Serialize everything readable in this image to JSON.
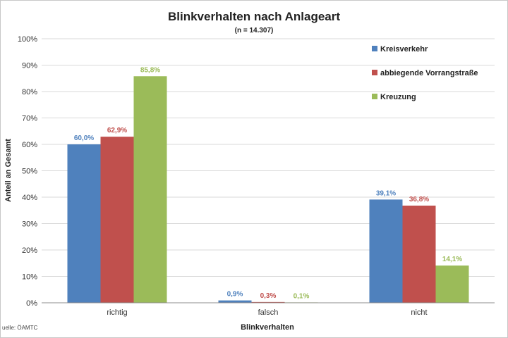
{
  "chart_data": {
    "type": "bar",
    "title": "Blinkverhalten nach Anlageart",
    "subtitle": "(n = 14.307)",
    "xlabel": "Blinkverhalten",
    "ylabel": "Anteil an Gesamt",
    "categories": [
      "richtig",
      "falsch",
      "nicht"
    ],
    "ylim": [
      0,
      100
    ],
    "yticks": [
      0,
      10,
      20,
      30,
      40,
      50,
      60,
      70,
      80,
      90,
      100
    ],
    "ytick_labels": [
      "0%",
      "10%",
      "20%",
      "30%",
      "40%",
      "50%",
      "60%",
      "70%",
      "80%",
      "90%",
      "100%"
    ],
    "grid": true,
    "legend_position": "top-right",
    "series": [
      {
        "name": "Kreisverkehr",
        "color": "#4f81bd",
        "values": [
          60.0,
          0.9,
          39.1
        ],
        "labels": [
          "60,0%",
          "0,9%",
          "39,1%"
        ]
      },
      {
        "name": "abbiegende Vorrangstraße",
        "color": "#c0504d",
        "values": [
          62.9,
          0.3,
          36.8
        ],
        "labels": [
          "62,9%",
          "0,3%",
          "36,8%"
        ]
      },
      {
        "name": "Kreuzung",
        "color": "#9bbb59",
        "values": [
          85.8,
          0.1,
          14.1
        ],
        "labels": [
          "85,8%",
          "0,1%",
          "14,1%"
        ]
      }
    ],
    "source": "uelle: ÖAMTC"
  }
}
